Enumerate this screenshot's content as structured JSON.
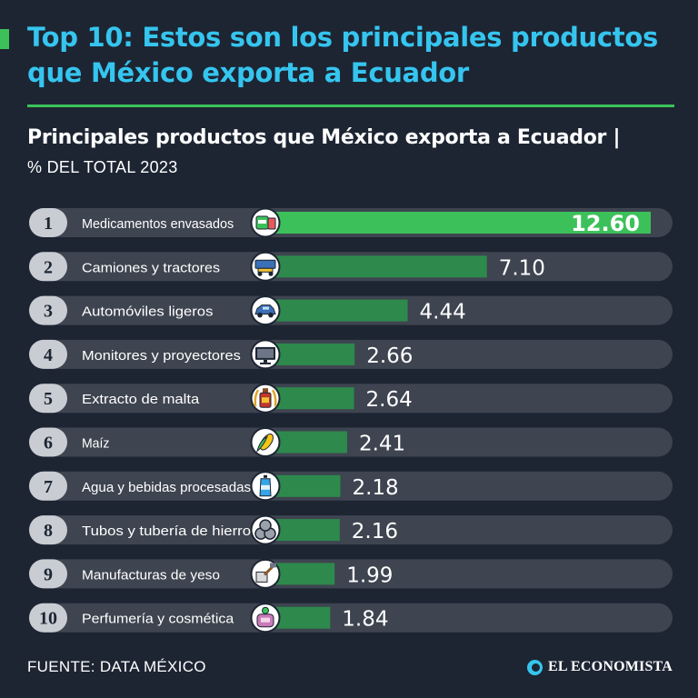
{
  "header": {
    "headline": "Top 10: Estos son los principales productos que México exporta a Ecuador",
    "subtitle": "Principales productos que México exporta a Ecuador |",
    "subtitle_unit": "% DEL TOTAL 2023"
  },
  "footer": {
    "source": "FUENTE: DATA MÉXICO",
    "brand": "EL ECONOMISTA"
  },
  "colors": {
    "background": "#1d2533",
    "headline": "#35c5ef",
    "accent": "#3cc15a",
    "row_track": "#3e4450",
    "bar": "#2d8a4c",
    "bar_highlight": "#3cc15a",
    "rank_badge": "#c9ccd2",
    "icon_disc": "#ffffff"
  },
  "chart_data": {
    "type": "bar",
    "orientation": "horizontal",
    "title": "Principales productos que México exporta a Ecuador",
    "unit": "% del total 2023",
    "xlim": [
      0,
      12.6
    ],
    "categories": [
      "Medicamentos envasados",
      "Camiones y tractores",
      "Automóviles ligeros",
      "Monitores y proyectores",
      "Extracto de malta",
      "Maíz",
      "Agua y bebidas procesadas",
      "Tubos y tubería de hierro",
      "Manufacturas de yeso",
      "Perfumería y cosmética"
    ],
    "values": [
      12.6,
      7.1,
      4.44,
      2.66,
      2.64,
      2.41,
      2.18,
      2.16,
      1.99,
      1.84
    ],
    "value_labels": [
      "12.60",
      "7.10",
      "4.44",
      "2.66",
      "2.64",
      "2.41",
      "2.18",
      "2.16",
      "1.99",
      "1.84"
    ],
    "ranks": [
      "1",
      "2",
      "3",
      "4",
      "5",
      "6",
      "7",
      "8",
      "9",
      "10"
    ],
    "icons": [
      "medicine-icon",
      "truck-icon",
      "car-icon",
      "monitor-icon",
      "malt-extract-icon",
      "corn-icon",
      "water-bottle-icon",
      "pipes-icon",
      "plaster-icon",
      "perfume-icon"
    ]
  }
}
